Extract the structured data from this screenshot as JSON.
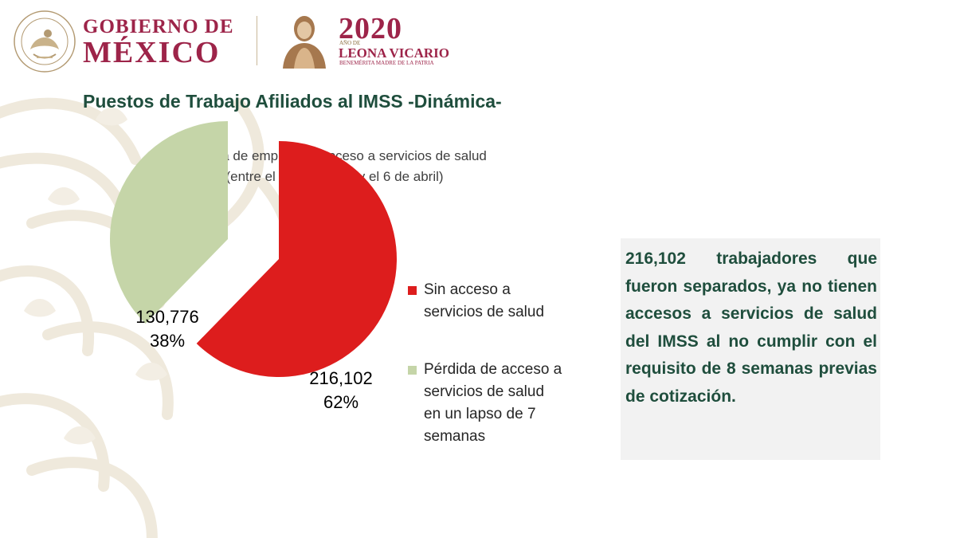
{
  "header": {
    "seal_text": "ESTADOS UNIDOS MEXICANOS",
    "gov_line1": "GOBIERNO DE",
    "gov_line2": "MÉXICO",
    "year": "2020",
    "year_sub": "AÑO DE",
    "honoree": "LEONA VICARIO",
    "honoree_sub": "BENEMÉRITA MADRE DE LA PATRIA"
  },
  "slide": {
    "title": "Puestos de Trabajo Afiliados al IMSS -Dinámica-"
  },
  "chart_data": {
    "type": "pie",
    "title": "Pérdida de empleo sin acceso a servicios de salud",
    "subtitle": "(entre el 13 de marzo y el 6 de abril)",
    "legend_position": "right",
    "slices": [
      {
        "name": "Sin acceso a servicios de salud",
        "legend_lines": [
          "Sin acceso a",
          "servicios de salud"
        ],
        "value": 216102,
        "value_label": "216,102",
        "percent_label": "62%",
        "color": "#dd1d1d"
      },
      {
        "name": "Pérdida de acceso a servicios de salud en un lapso de 7 semanas",
        "legend_lines": [
          "Pérdida de acceso a",
          "servicios de salud",
          "en un lapso de 7",
          "semanas"
        ],
        "value": 130776,
        "value_label": "130,776",
        "percent_label": "38%",
        "color": "#c5d5a8"
      }
    ]
  },
  "callout": {
    "text": "216,102 trabajadores que fueron separados, ya no tienen accesos a servicios de salud del IMSS al no cumplir con el requisito de 8 semanas previas de cotización."
  },
  "colors": {
    "brand": "#9d2449",
    "title_green": "#1f4e3d",
    "callout_bg": "#f2f2f2",
    "pattern": "#efe9dc"
  }
}
